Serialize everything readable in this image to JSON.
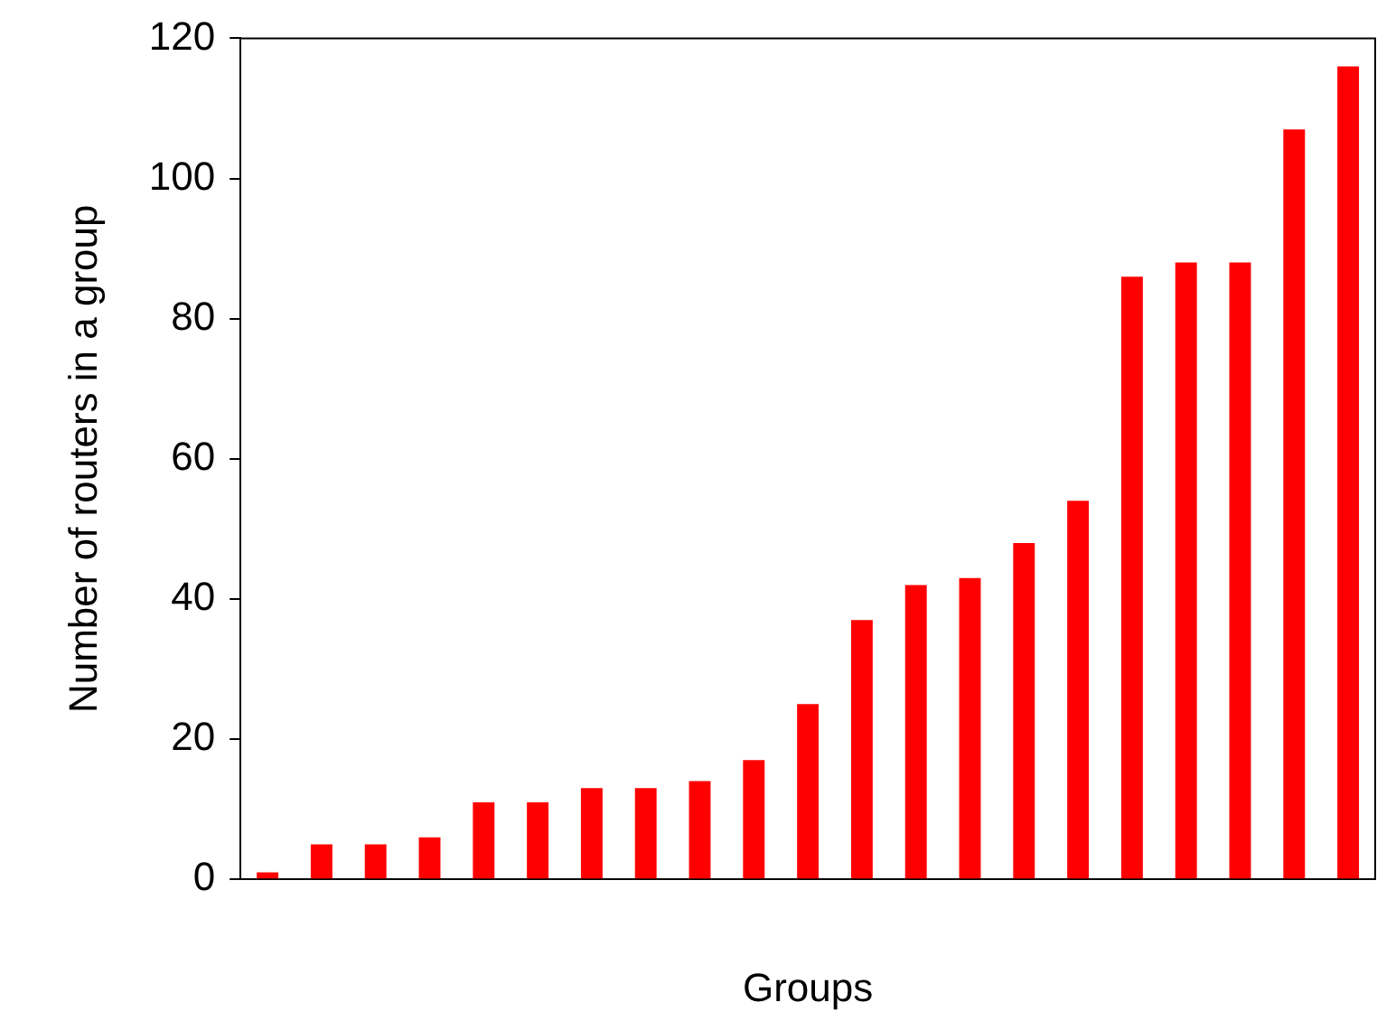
{
  "chart_data": {
    "type": "bar",
    "xlabel": "Groups",
    "ylabel": "Number of routers in a group",
    "categories": [
      null,
      null,
      null,
      null,
      null,
      null,
      null,
      null,
      null,
      null,
      null,
      null,
      null,
      null,
      null,
      null,
      null,
      null,
      null,
      null,
      null
    ],
    "values": [
      1,
      5,
      5,
      6,
      11,
      11,
      13,
      13,
      14,
      17,
      25,
      37,
      42,
      43,
      48,
      54,
      86,
      88,
      88,
      107,
      116
    ],
    "color": "#ff0000",
    "ylim": [
      0,
      120
    ],
    "yticks": [
      0,
      20,
      40,
      60,
      80,
      100,
      120
    ],
    "grid": false,
    "legend": false
  }
}
